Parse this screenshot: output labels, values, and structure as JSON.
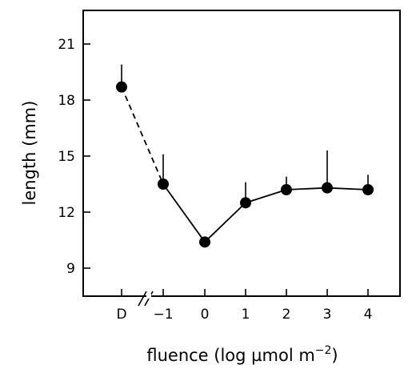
{
  "chart_data": {
    "type": "line",
    "title": "",
    "xlabel": "fluence (log µmol m",
    "xlabel_sup": "−2",
    "xlabel_close": ")",
    "ylabel": "length (mm)",
    "x_categories": [
      "D",
      "−1",
      "0",
      "1",
      "2",
      "3",
      "4"
    ],
    "x_axis_break": "//",
    "y_ticks": [
      "9",
      "12",
      "15",
      "18",
      "21"
    ],
    "ylim": [
      7.5,
      22.8
    ],
    "grid": false,
    "legend": "none",
    "series": [
      {
        "points": [
          {
            "x": "D",
            "y": 18.7,
            "err": 1.2
          },
          {
            "x": "−1",
            "y": 13.5,
            "err": 1.6
          },
          {
            "x": "0",
            "y": 10.4,
            "err": 0.0
          },
          {
            "x": "1",
            "y": 12.5,
            "err": 1.1
          },
          {
            "x": "2",
            "y": 13.2,
            "err": 0.7
          },
          {
            "x": "3",
            "y": 13.3,
            "err": 2.0
          },
          {
            "x": "4",
            "y": 13.2,
            "err": 0.8
          }
        ],
        "dashed_segment": [
          "D",
          "−1"
        ]
      }
    ],
    "colors": {
      "marker": "#000000",
      "line": "#000000"
    }
  }
}
